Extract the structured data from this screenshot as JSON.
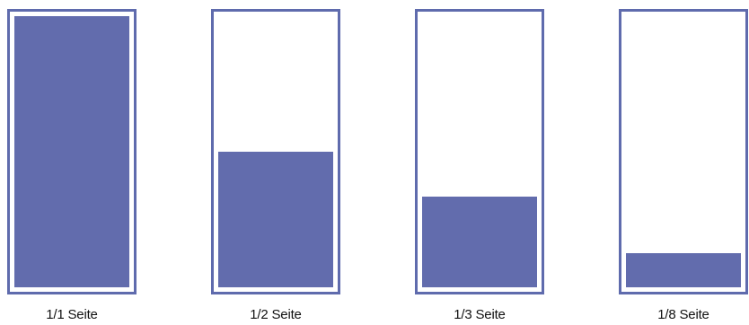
{
  "colors": {
    "frame": "#5f6bad",
    "fill": "#626cad",
    "text": "#111111"
  },
  "pages": [
    {
      "caption": "1/1 Seite",
      "fraction": 1.0
    },
    {
      "caption": "1/2 Seite",
      "fraction": 0.5
    },
    {
      "caption": "1/3 Seite",
      "fraction": 0.3333
    },
    {
      "caption": "1/8 Seite",
      "fraction": 0.125
    }
  ]
}
